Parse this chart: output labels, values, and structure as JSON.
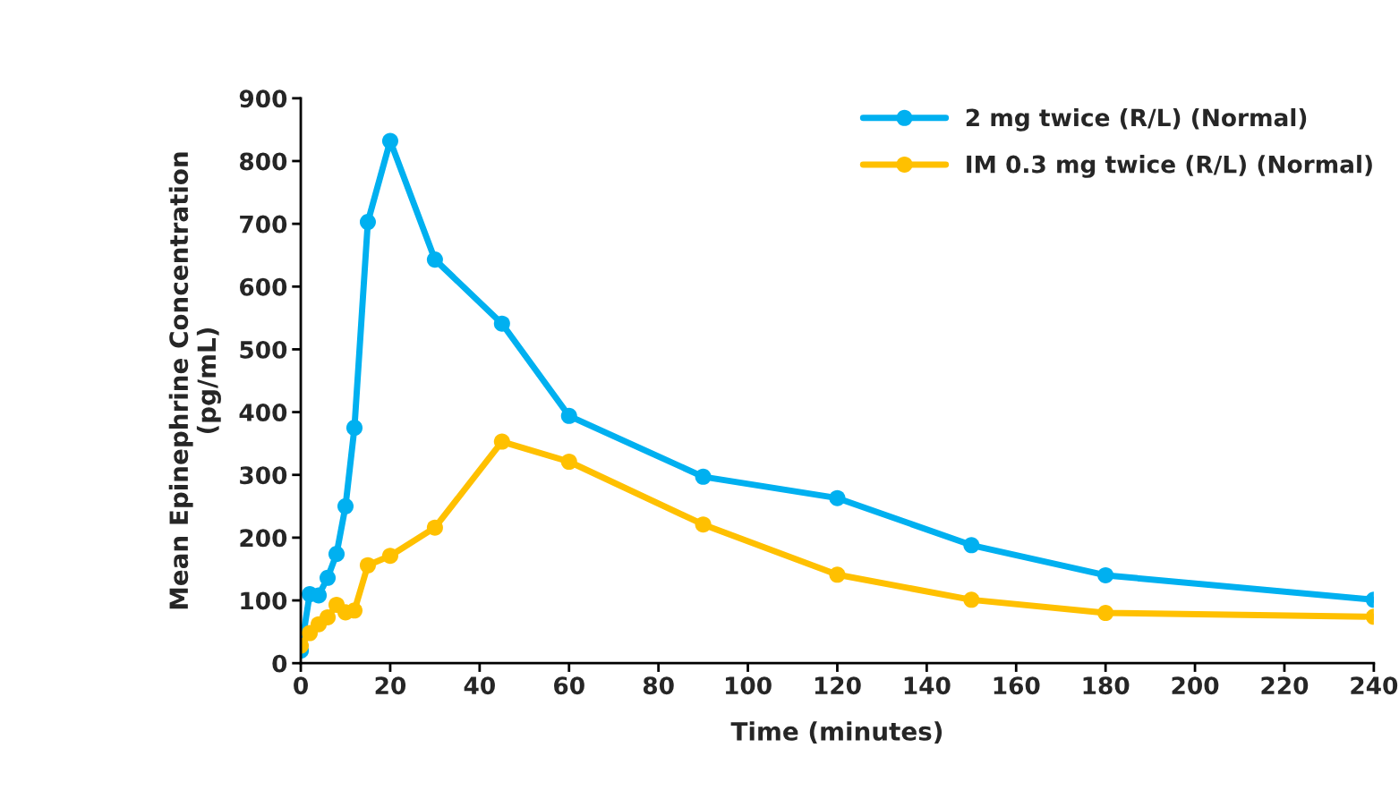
{
  "chart_data": {
    "type": "line",
    "xlabel": "Time (minutes)",
    "ylabel": "Mean Epinephrine Concentration\n(pg/mL)",
    "x": [
      0,
      2,
      4,
      6,
      8,
      10,
      12,
      15,
      20,
      30,
      45,
      60,
      90,
      120,
      150,
      180,
      240
    ],
    "series": [
      {
        "name": "2 mg twice (R/L) (Normal)",
        "color": "#00b0f0",
        "values": [
          20,
          110,
          108,
          136,
          174,
          250,
          375,
          703,
          832,
          643,
          541,
          394,
          297,
          263,
          188,
          140,
          101
        ]
      },
      {
        "name": "IM 0.3 mg twice (R/L) (Normal)",
        "color": "#ffc000",
        "values": [
          28,
          48,
          62,
          73,
          93,
          81,
          84,
          156,
          171,
          216,
          353,
          321,
          221,
          141,
          101,
          80,
          74
        ]
      }
    ],
    "xlim": [
      0,
      240
    ],
    "xticks": [
      0,
      20,
      40,
      60,
      80,
      100,
      120,
      140,
      160,
      180,
      200,
      220,
      240
    ],
    "ylim": [
      0,
      900
    ],
    "yticks": [
      0,
      100,
      200,
      300,
      400,
      500,
      600,
      700,
      800,
      900
    ],
    "grid": false,
    "legend": "top right",
    "marker": "circle",
    "line_style": "solid"
  }
}
